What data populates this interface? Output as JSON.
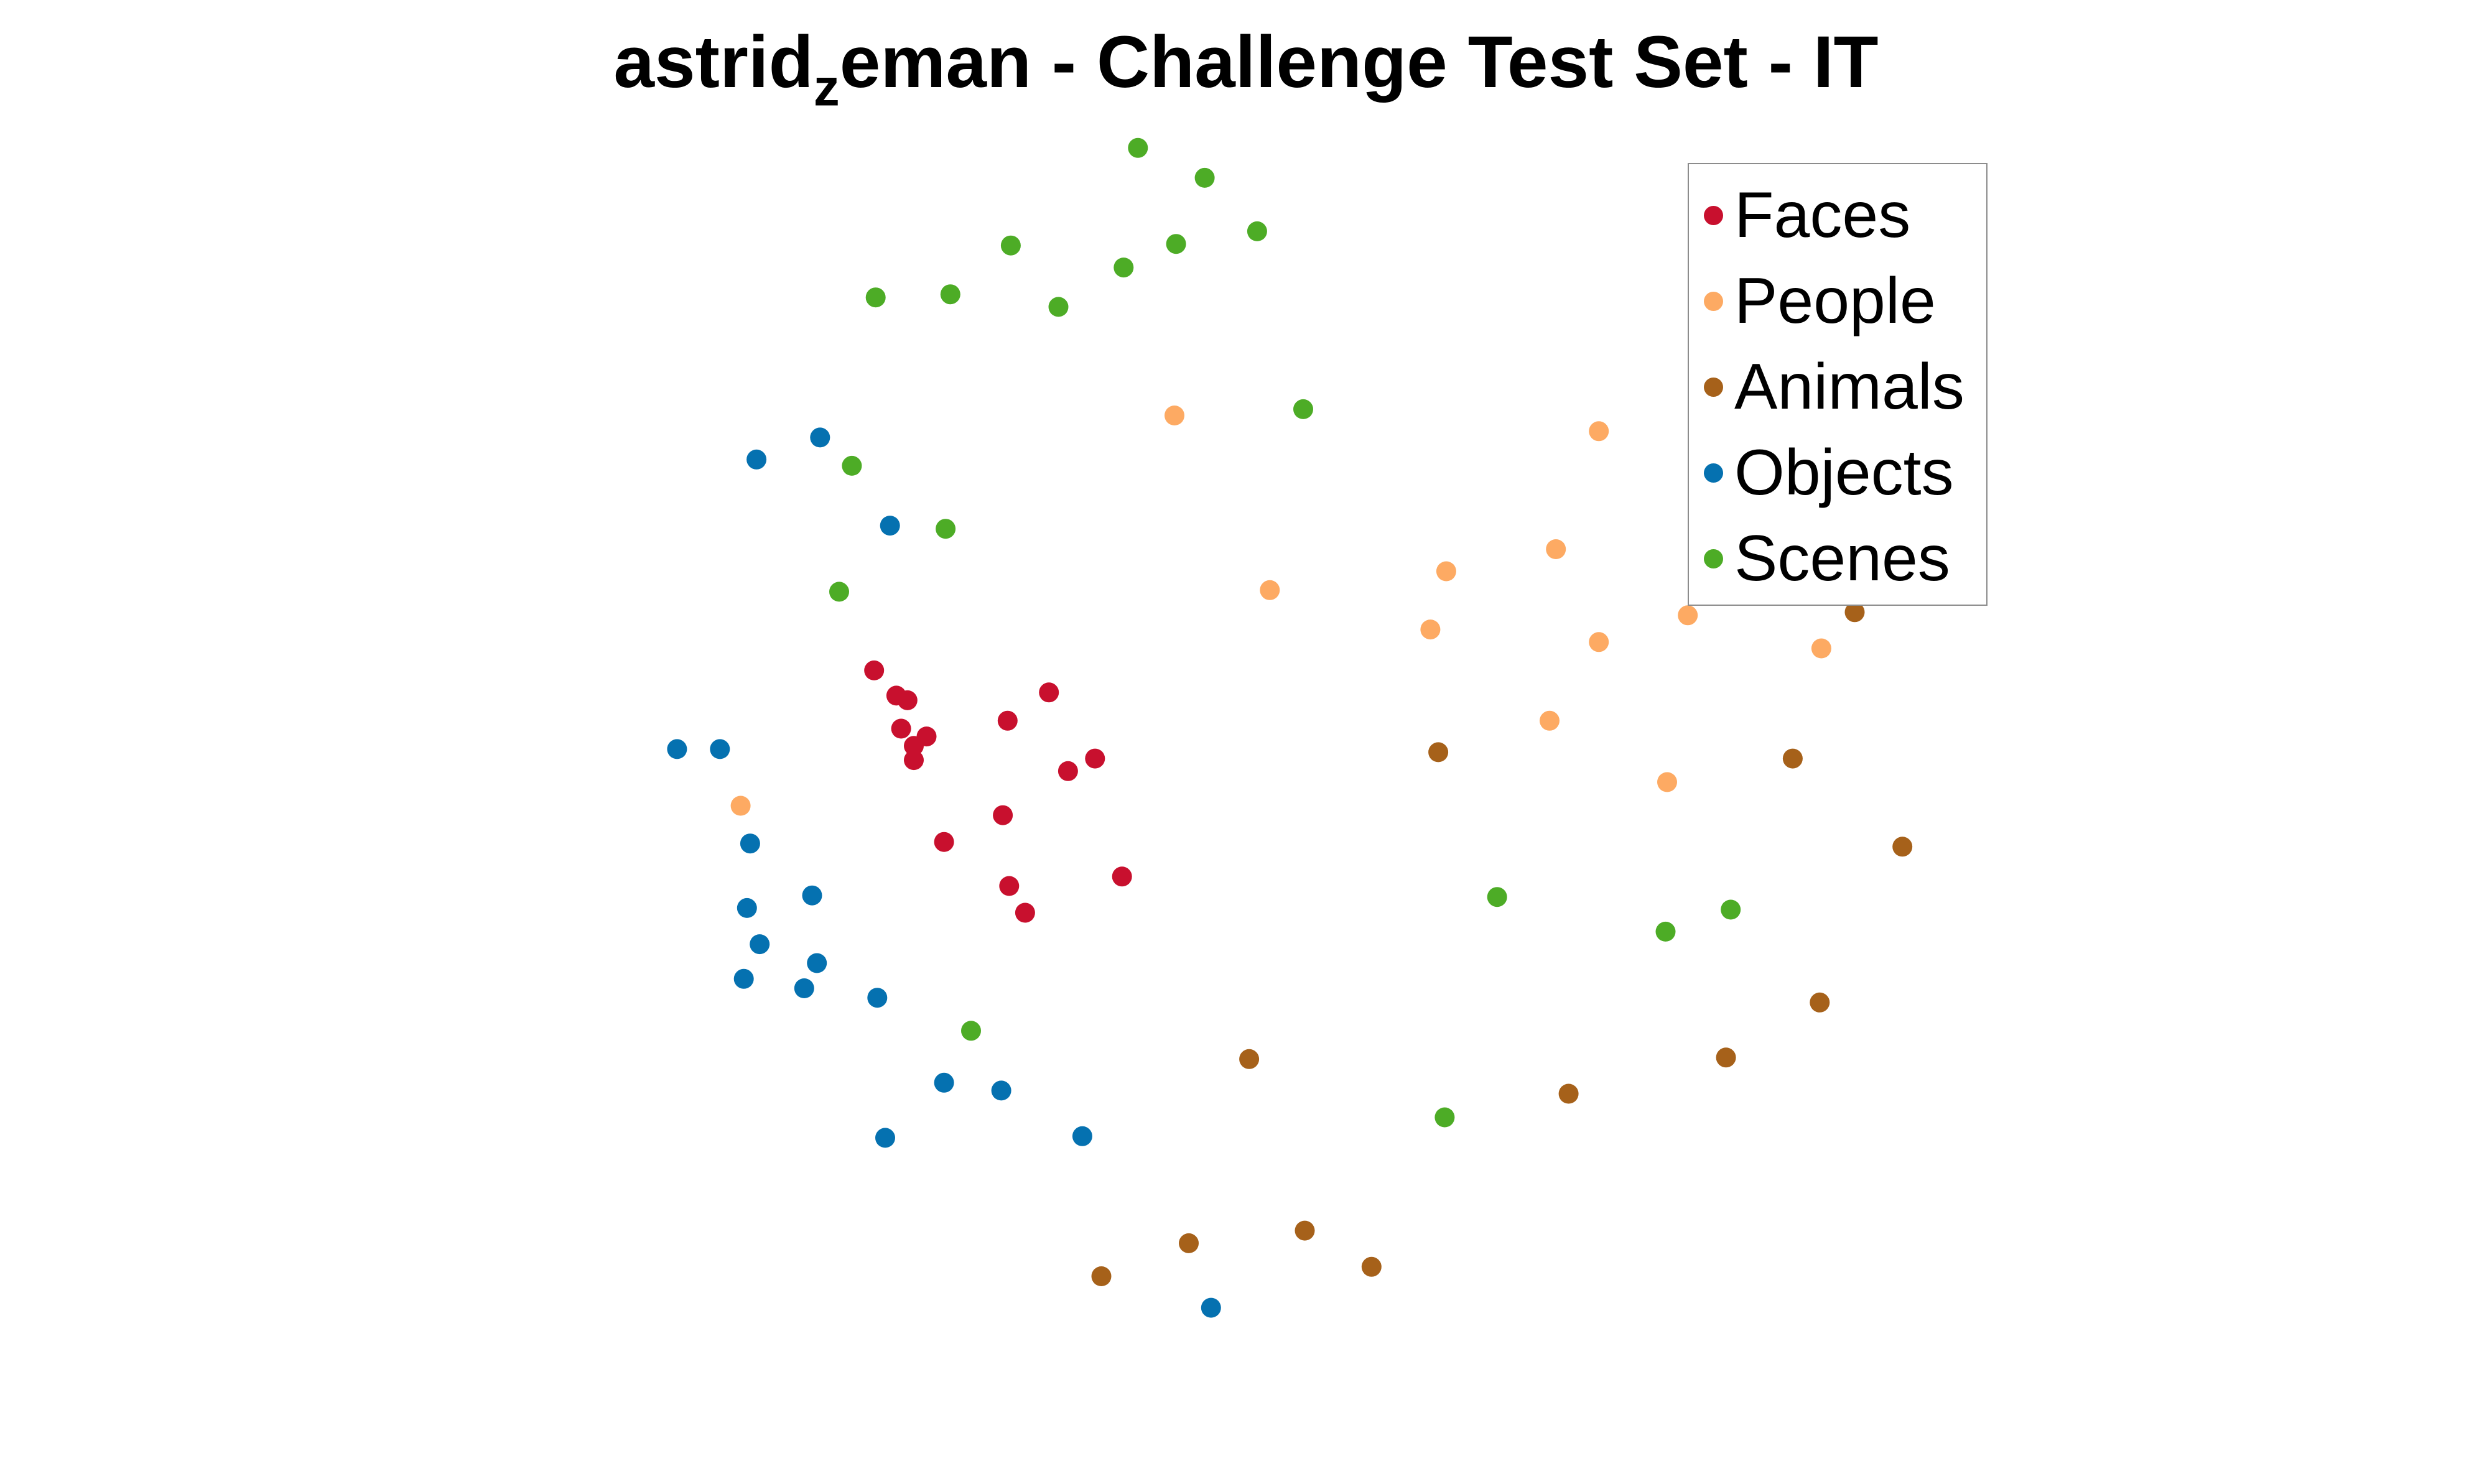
{
  "title": {
    "prefix": "astrid",
    "subscript": "z",
    "suffix": "eman - Challenge Test Set - IT"
  },
  "chart_data": {
    "type": "scatter",
    "title": "astrid_zeman - Challenge Test Set - IT",
    "xlabel": "",
    "ylabel": "",
    "axes_visible": false,
    "grid": false,
    "legend_placement": "top-right",
    "series": [
      {
        "name": "Faces",
        "color": "#c8102e",
        "points": [
          [
            550,
            426
          ],
          [
            564,
            442
          ],
          [
            571,
            445
          ],
          [
            567,
            463
          ],
          [
            575,
            474
          ],
          [
            583,
            468
          ],
          [
            575,
            483
          ],
          [
            634,
            458
          ],
          [
            660,
            440
          ],
          [
            689,
            482
          ],
          [
            672,
            490
          ],
          [
            631,
            518
          ],
          [
            594,
            535
          ],
          [
            706,
            557
          ],
          [
            635,
            563
          ],
          [
            645,
            580
          ]
        ]
      },
      {
        "name": "People",
        "color": "#fdaa63",
        "points": [
          [
            739,
            264
          ],
          [
            1006,
            274
          ],
          [
            979,
            349
          ],
          [
            910,
            363
          ],
          [
            799,
            375
          ],
          [
            900,
            400
          ],
          [
            1062,
            391
          ],
          [
            1006,
            408
          ],
          [
            1146,
            412
          ],
          [
            975,
            458
          ],
          [
            1049,
            497
          ],
          [
            466,
            512
          ]
        ]
      },
      {
        "name": "Animals",
        "color": "#a6611a",
        "points": [
          [
            1167,
            389
          ],
          [
            905,
            478
          ],
          [
            1128,
            482
          ],
          [
            1197,
            538
          ],
          [
            1145,
            637
          ],
          [
            786,
            673
          ],
          [
            1086,
            672
          ],
          [
            987,
            695
          ],
          [
            821,
            782
          ],
          [
            748,
            790
          ],
          [
            863,
            805
          ],
          [
            693,
            811
          ]
        ]
      },
      {
        "name": "Objects",
        "color": "#0571b0",
        "points": [
          [
            476,
            292
          ],
          [
            516,
            278
          ],
          [
            560,
            334
          ],
          [
            426,
            476
          ],
          [
            453,
            476
          ],
          [
            472,
            536
          ],
          [
            511,
            569
          ],
          [
            470,
            577
          ],
          [
            478,
            600
          ],
          [
            514,
            612
          ],
          [
            468,
            622
          ],
          [
            506,
            628
          ],
          [
            552,
            634
          ],
          [
            594,
            688
          ],
          [
            630,
            693
          ],
          [
            557,
            723
          ],
          [
            681,
            722
          ],
          [
            762,
            831
          ]
        ]
      },
      {
        "name": "Scenes",
        "color": "#4dac26",
        "points": [
          [
            716,
            94
          ],
          [
            758,
            113
          ],
          [
            791,
            147
          ],
          [
            740,
            155
          ],
          [
            636,
            156
          ],
          [
            707,
            170
          ],
          [
            551,
            189
          ],
          [
            598,
            187
          ],
          [
            666,
            195
          ],
          [
            820,
            260
          ],
          [
            536,
            296
          ],
          [
            595,
            336
          ],
          [
            528,
            376
          ],
          [
            942,
            570
          ],
          [
            1089,
            578
          ],
          [
            1048,
            592
          ],
          [
            611,
            655
          ],
          [
            909,
            710
          ]
        ]
      }
    ]
  },
  "colors": {
    "background": "#ffffff",
    "legend_border": "#8c8c8c",
    "text": "#000000"
  }
}
